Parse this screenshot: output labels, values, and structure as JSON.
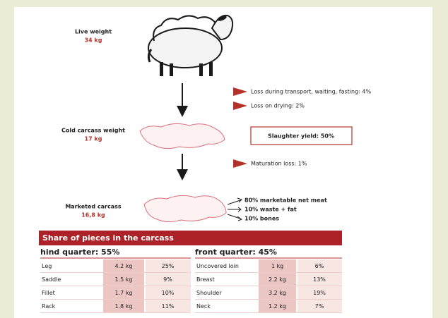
{
  "stages": [
    {
      "label": "Live weight",
      "value": "34 kg"
    },
    {
      "label": "Cold carcass weight",
      "value": "17 kg"
    },
    {
      "label": "Marketed carcass",
      "value": "16,8 kg"
    }
  ],
  "losses": [
    "Loss during transport, waiting, fasting: 4%",
    "Loss on drying: 2%",
    "Maturation loss: 1%"
  ],
  "yield": "Slaughter yield: 50%",
  "breakdown": [
    "80% marketable net meat",
    "10% waste + fat",
    "10% bones"
  ],
  "table": {
    "title": "Share of pieces in the carcass",
    "hind": {
      "header": "hind quarter: 55%",
      "rows": [
        [
          "Leg",
          "4.2 kg",
          "25%"
        ],
        [
          "Saddle",
          "1.5 kg",
          "9%"
        ],
        [
          "Fillet",
          "1.7 kg",
          "10%"
        ],
        [
          "Rack",
          "1.8 kg",
          "11%"
        ]
      ]
    },
    "front": {
      "header": "front quarter: 45%",
      "rows": [
        [
          "Uncovered loin",
          "1 kg",
          "6%"
        ],
        [
          "Breast",
          "2.2 kg",
          "13%"
        ],
        [
          "Shoulder",
          "3.2 kg",
          "19%"
        ],
        [
          "Neck",
          "1.2 kg",
          "7%"
        ]
      ]
    }
  }
}
